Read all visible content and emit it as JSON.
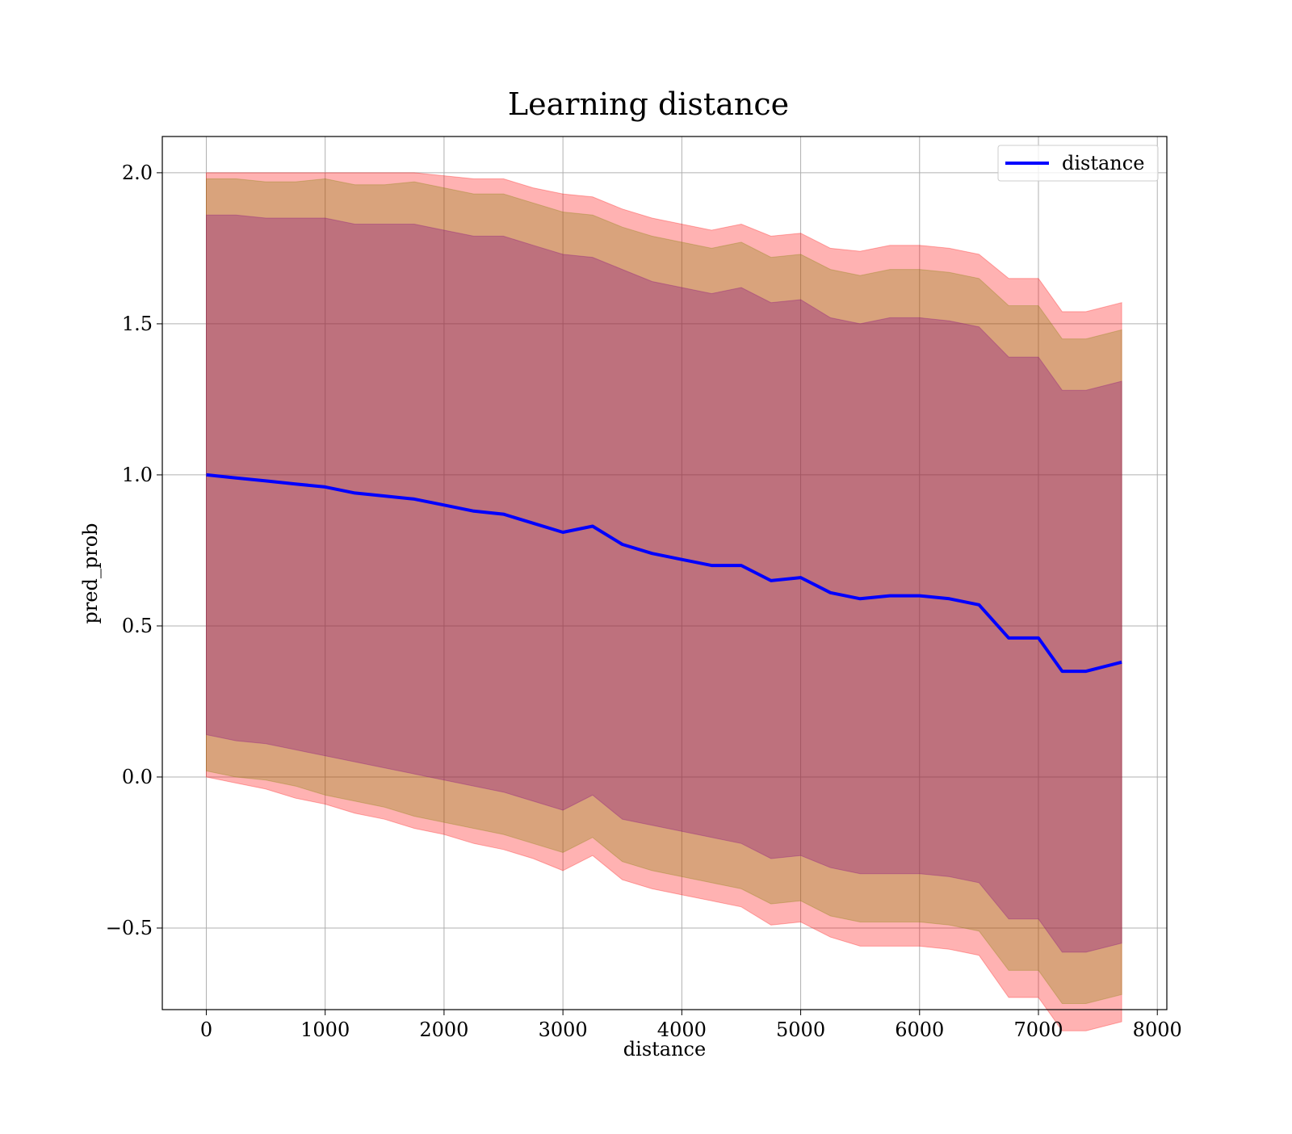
{
  "chart_data": {
    "type": "line",
    "title": "Learning distance",
    "xlabel": "distance",
    "ylabel": "pred_prob",
    "xlim": [
      -370,
      8080
    ],
    "ylim": [
      -0.77,
      2.12
    ],
    "xticks": [
      0,
      1000,
      2000,
      3000,
      4000,
      5000,
      6000,
      7000,
      8000
    ],
    "xtick_labels": [
      "0",
      "1000",
      "2000",
      "3000",
      "4000",
      "5000",
      "6000",
      "7000",
      "8000"
    ],
    "yticks": [
      -0.5,
      0.0,
      0.5,
      1.0,
      1.5,
      2.0
    ],
    "ytick_labels": [
      "−0.5",
      "0.0",
      "0.5",
      "1.0",
      "1.5",
      "2.0"
    ],
    "grid": true,
    "legend_position": "top-right",
    "x": [
      0,
      250,
      500,
      750,
      1000,
      1250,
      1500,
      1750,
      2000,
      2250,
      2500,
      2750,
      3000,
      3250,
      3500,
      3750,
      4000,
      4250,
      4500,
      4750,
      5000,
      5250,
      5500,
      5750,
      6000,
      6250,
      6500,
      6750,
      7000,
      7200,
      7400,
      7700
    ],
    "series": [
      {
        "name": "distance",
        "role": "line",
        "color": "#0000ff",
        "values": [
          1.0,
          0.99,
          0.98,
          0.97,
          0.96,
          0.94,
          0.93,
          0.92,
          0.9,
          0.88,
          0.87,
          0.84,
          0.81,
          0.83,
          0.77,
          0.74,
          0.72,
          0.7,
          0.7,
          0.65,
          0.66,
          0.61,
          0.59,
          0.6,
          0.6,
          0.59,
          0.57,
          0.46,
          0.46,
          0.35,
          0.35,
          0.38
        ]
      },
      {
        "role": "band",
        "color": "#ff0000",
        "opacity": 0.3,
        "lower": [
          0.0,
          -0.02,
          -0.04,
          -0.07,
          -0.09,
          -0.12,
          -0.14,
          -0.17,
          -0.19,
          -0.22,
          -0.24,
          -0.27,
          -0.31,
          -0.26,
          -0.34,
          -0.37,
          -0.39,
          -0.41,
          -0.43,
          -0.49,
          -0.48,
          -0.53,
          -0.56,
          -0.56,
          -0.56,
          -0.57,
          -0.59,
          -0.73,
          -0.73,
          -0.84,
          -0.84,
          -0.81
        ],
        "upper": [
          2.0,
          2.0,
          2.0,
          2.0,
          2.0,
          2.0,
          2.0,
          2.0,
          1.99,
          1.98,
          1.98,
          1.95,
          1.93,
          1.92,
          1.88,
          1.85,
          1.83,
          1.81,
          1.83,
          1.79,
          1.8,
          1.75,
          1.74,
          1.76,
          1.76,
          1.75,
          1.73,
          1.65,
          1.65,
          1.54,
          1.54,
          1.57
        ]
      },
      {
        "role": "band",
        "color": "#808000",
        "opacity": 0.3,
        "lower": [
          0.02,
          0.0,
          -0.01,
          -0.03,
          -0.06,
          -0.08,
          -0.1,
          -0.13,
          -0.15,
          -0.17,
          -0.19,
          -0.22,
          -0.25,
          -0.2,
          -0.28,
          -0.31,
          -0.33,
          -0.35,
          -0.37,
          -0.42,
          -0.41,
          -0.46,
          -0.48,
          -0.48,
          -0.48,
          -0.49,
          -0.51,
          -0.64,
          -0.64,
          -0.75,
          -0.75,
          -0.72
        ],
        "upper": [
          1.98,
          1.98,
          1.97,
          1.97,
          1.98,
          1.96,
          1.96,
          1.97,
          1.95,
          1.93,
          1.93,
          1.9,
          1.87,
          1.86,
          1.82,
          1.79,
          1.77,
          1.75,
          1.77,
          1.72,
          1.73,
          1.68,
          1.66,
          1.68,
          1.68,
          1.67,
          1.65,
          1.56,
          1.56,
          1.45,
          1.45,
          1.48
        ]
      },
      {
        "role": "band",
        "color": "#800080",
        "opacity": 0.3,
        "lower": [
          0.14,
          0.12,
          0.11,
          0.09,
          0.07,
          0.05,
          0.03,
          0.01,
          -0.01,
          -0.03,
          -0.05,
          -0.08,
          -0.11,
          -0.06,
          -0.14,
          -0.16,
          -0.18,
          -0.2,
          -0.22,
          -0.27,
          -0.26,
          -0.3,
          -0.32,
          -0.32,
          -0.32,
          -0.33,
          -0.35,
          -0.47,
          -0.47,
          -0.58,
          -0.58,
          -0.55
        ],
        "upper": [
          1.86,
          1.86,
          1.85,
          1.85,
          1.85,
          1.83,
          1.83,
          1.83,
          1.81,
          1.79,
          1.79,
          1.76,
          1.73,
          1.72,
          1.68,
          1.64,
          1.62,
          1.6,
          1.62,
          1.57,
          1.58,
          1.52,
          1.5,
          1.52,
          1.52,
          1.51,
          1.49,
          1.39,
          1.39,
          1.28,
          1.28,
          1.31
        ]
      }
    ]
  }
}
